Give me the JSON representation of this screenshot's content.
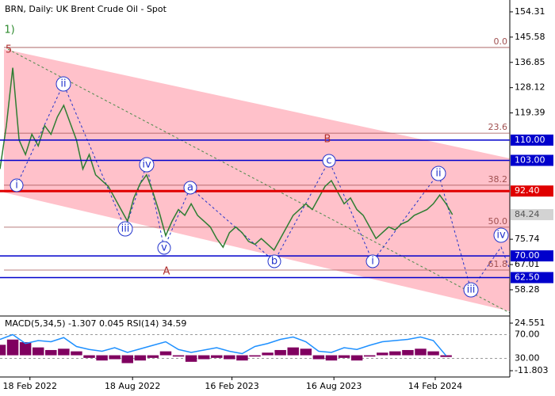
{
  "chart_data": [
    {
      "type": "line",
      "title": "BRN,  Daily:  UK Brent Crude Oil - Spot",
      "values": [
        100,
        115,
        135,
        110,
        105,
        112,
        108,
        115,
        112,
        118,
        122,
        116,
        110,
        100,
        105,
        98,
        96,
        94,
        90,
        86,
        82,
        90,
        95,
        98,
        92,
        85,
        77,
        82,
        86,
        84,
        88,
        84,
        82,
        80,
        76,
        73,
        78,
        80,
        78,
        75,
        74,
        76,
        74,
        72,
        76,
        80,
        84,
        86,
        88,
        86,
        90,
        94,
        96,
        92,
        88,
        90,
        86,
        84,
        80,
        76,
        78,
        80,
        79,
        81,
        82,
        84,
        85,
        86,
        88,
        91,
        88,
        84.24
      ],
      "color": "#2e7d32",
      "xlim": [
        0,
        80
      ],
      "ylim": [
        49.5,
        158.4
      ],
      "yticks": [
        154.31,
        145.58,
        136.85,
        128.12,
        119.39,
        75.74,
        67.01,
        58.28
      ],
      "xticks": [
        {
          "value": 4.7,
          "label": "18 Feb 2022"
        },
        {
          "value": 20.8,
          "label": "18 Aug 2022"
        },
        {
          "value": 36.4,
          "label": "16 Feb 2023"
        },
        {
          "value": 52.4,
          "label": "16 Aug 2023"
        },
        {
          "value": 68.3,
          "label": "14 Feb 2024"
        }
      ],
      "levels": [
        {
          "value": 110,
          "label": "110.00",
          "color": "#0000cc"
        },
        {
          "value": 103,
          "label": "103.00",
          "color": "#0000cc"
        },
        {
          "value": 92.4,
          "label": "92.40",
          "color": "#e00000"
        },
        {
          "value": 70,
          "label": "70.00",
          "color": "#0000cc"
        },
        {
          "value": 62.5,
          "label": "62.50",
          "color": "#0000cc"
        }
      ],
      "last_price": 84.24,
      "fib_levels": [
        {
          "value": 142.0,
          "label": "0.0"
        },
        {
          "value": 112.4,
          "label": "23.6"
        },
        {
          "value": 94.4,
          "label": "38.2"
        },
        {
          "value": 79.9,
          "label": "50.0"
        },
        {
          "value": 65.1,
          "label": "61.8"
        }
      ],
      "annotations": [
        "1)",
        "5",
        "i",
        "ii",
        "iii",
        "iv",
        "v",
        "a",
        "A",
        "b",
        "B",
        "c",
        "i",
        "ii",
        "iii",
        "iv"
      ]
    },
    {
      "type": "indicator",
      "title": "MACD(5,34,5) -1.307 0.045 RSI(14) 34.59",
      "x": [
        0,
        2,
        4,
        6,
        8,
        10,
        12,
        14,
        16,
        18,
        20,
        22,
        24,
        26,
        28,
        30,
        32,
        34,
        36,
        38,
        40,
        42,
        44,
        46,
        48,
        50,
        52,
        54,
        56,
        58,
        60,
        62,
        64,
        66,
        68,
        70
      ],
      "xlim": [
        0,
        80
      ],
      "ylim": [
        -16.0,
        29.4
      ],
      "yticks": [
        24.551,
        -11.803
      ],
      "y2lim": [
        0,
        100
      ],
      "y2ticks": [
        {
          "value": 70,
          "label": "70.00"
        },
        {
          "value": 30,
          "label": "30.00"
        }
      ],
      "series": [
        {
          "type": "bar",
          "color": "#800060",
          "values": [
            8,
            12,
            10,
            6,
            4,
            5,
            3,
            -2,
            -4,
            -3,
            -6,
            -4,
            -2,
            3,
            -1,
            -5,
            -3,
            -2,
            -3,
            -4,
            -1,
            2,
            4,
            6,
            5,
            -3,
            -4,
            -2,
            -4,
            -1,
            2,
            3,
            4,
            5,
            3,
            -1.3
          ]
        },
        {
          "type": "line",
          "axis": "y2",
          "color": "#1e90ff",
          "values": [
            62,
            70,
            55,
            60,
            58,
            65,
            50,
            45,
            42,
            48,
            40,
            46,
            52,
            58,
            45,
            40,
            44,
            48,
            42,
            38,
            50,
            55,
            62,
            66,
            58,
            42,
            40,
            48,
            45,
            52,
            58,
            60,
            62,
            66,
            60,
            34.59
          ]
        }
      ]
    }
  ]
}
